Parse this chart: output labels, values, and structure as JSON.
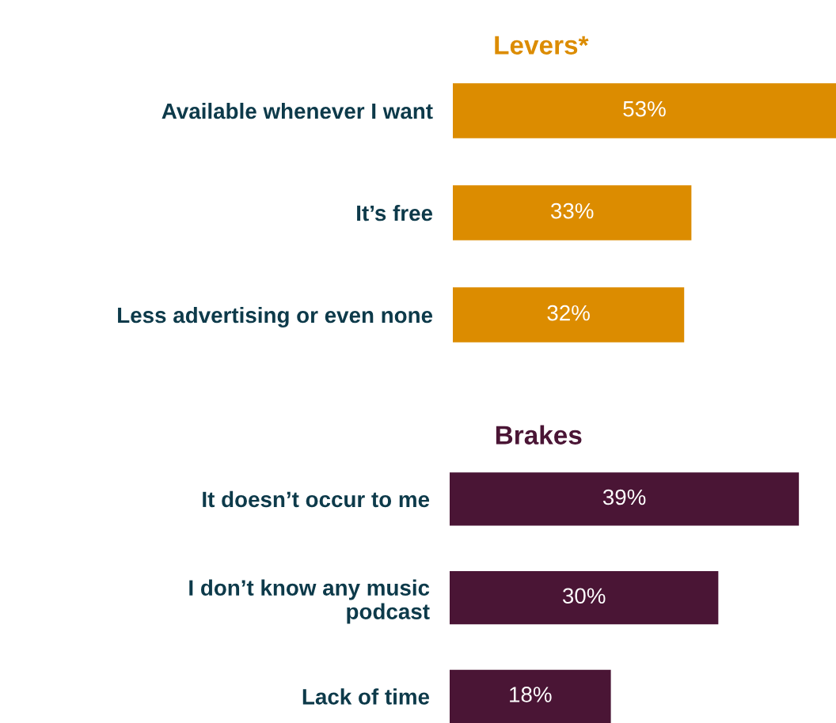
{
  "chart_data": [
    {
      "type": "bar",
      "orientation": "horizontal",
      "title": "Levers*",
      "categories": [
        "Available whenever I want",
        "It’s free",
        "Less advertising or even none"
      ],
      "series": [
        {
          "color": "#dc8c00",
          "values": [
            53,
            33,
            32
          ],
          "value_labels": [
            "53%",
            "33%",
            "32%"
          ]
        }
      ]
    },
    {
      "type": "bar",
      "orientation": "horizontal",
      "title": "Brakes",
      "categories": [
        "It doesn’t occur to me",
        "I don’t know any music\npodcast",
        "Lack of time"
      ],
      "series": [
        {
          "color": "#4a1535",
          "values": [
            39,
            30,
            18
          ],
          "value_labels": [
            "39%",
            "30%",
            "18%"
          ]
        }
      ]
    }
  ]
}
